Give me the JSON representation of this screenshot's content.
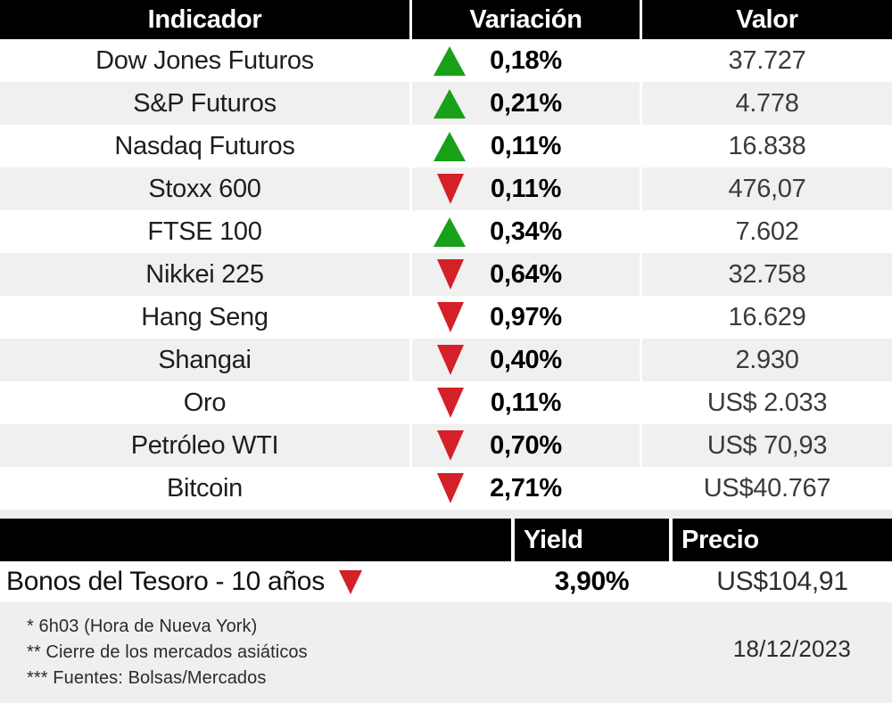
{
  "colors": {
    "up_green": "#18a018",
    "down_red": "#d42027",
    "header_bg": "#000000",
    "row_alt_bg": "#f0f0f0",
    "page_bg": "#efefef"
  },
  "table": {
    "headers": [
      "Indicador",
      "Variación",
      "Valor"
    ],
    "rows": [
      {
        "indicator": "Dow Jones Futuros",
        "direction": "up",
        "variation": "0,18%",
        "value": "37.727"
      },
      {
        "indicator": "S&P Futuros",
        "direction": "up",
        "variation": "0,21%",
        "value": "4.778"
      },
      {
        "indicator": "Nasdaq Futuros",
        "direction": "up",
        "variation": "0,11%",
        "value": "16.838"
      },
      {
        "indicator": "Stoxx 600",
        "direction": "down",
        "variation": "0,11%",
        "value": "476,07"
      },
      {
        "indicator": "FTSE 100",
        "direction": "up",
        "variation": "0,34%",
        "value": "7.602"
      },
      {
        "indicator": "Nikkei 225",
        "direction": "down",
        "variation": "0,64%",
        "value": "32.758"
      },
      {
        "indicator": "Hang Seng",
        "direction": "down",
        "variation": "0,97%",
        "value": "16.629"
      },
      {
        "indicator": "Shangai",
        "direction": "down",
        "variation": "0,40%",
        "value": "2.930"
      },
      {
        "indicator": "Oro",
        "direction": "down",
        "variation": "0,11%",
        "value": "US$ 2.033"
      },
      {
        "indicator": "Petróleo WTI",
        "direction": "down",
        "variation": "0,70%",
        "value": "US$ 70,93"
      },
      {
        "indicator": "Bitcoin",
        "direction": "down",
        "variation": "2,71%",
        "value": "US$40.767"
      }
    ]
  },
  "bond_table": {
    "headers": {
      "yield": "Yield",
      "price": "Precio"
    },
    "row": {
      "label": "Bonos del Tesoro - 10 años",
      "direction": "down",
      "yield": "3,90%",
      "price": "US$104,91"
    }
  },
  "footer": {
    "notes": [
      "* 6h03 (Hora de Nueva York)",
      "** Cierre de los mercados asiáticos",
      "*** Fuentes:  Bolsas/Mercados"
    ],
    "date": "18/12/2023"
  },
  "chart_data": [
    {
      "type": "table",
      "title": "Indicadores de mercado",
      "columns": [
        "Indicador",
        "Variación",
        "Valor"
      ],
      "rows": [
        [
          "Dow Jones Futuros",
          "▲ 0,18%",
          "37.727"
        ],
        [
          "S&P Futuros",
          "▲ 0,21%",
          "4.778"
        ],
        [
          "Nasdaq Futuros",
          "▲ 0,11%",
          "16.838"
        ],
        [
          "Stoxx 600",
          "▼ 0,11%",
          "476,07"
        ],
        [
          "FTSE 100",
          "▲ 0,34%",
          "7.602"
        ],
        [
          "Nikkei 225",
          "▼ 0,64%",
          "32.758"
        ],
        [
          "Hang Seng",
          "▼ 0,97%",
          "16.629"
        ],
        [
          "Shangai",
          "▼ 0,40%",
          "2.930"
        ],
        [
          "Oro",
          "▼ 0,11%",
          "US$ 2.033"
        ],
        [
          "Petróleo WTI",
          "▼ 0,70%",
          "US$ 70,93"
        ],
        [
          "Bitcoin",
          "▼ 2,71%",
          "US$40.767"
        ]
      ]
    },
    {
      "type": "table",
      "title": "Bonos",
      "columns": [
        "",
        "Yield",
        "Precio"
      ],
      "rows": [
        [
          "Bonos del Tesoro - 10 años ▼",
          "3,90%",
          "US$104,91"
        ]
      ]
    }
  ]
}
